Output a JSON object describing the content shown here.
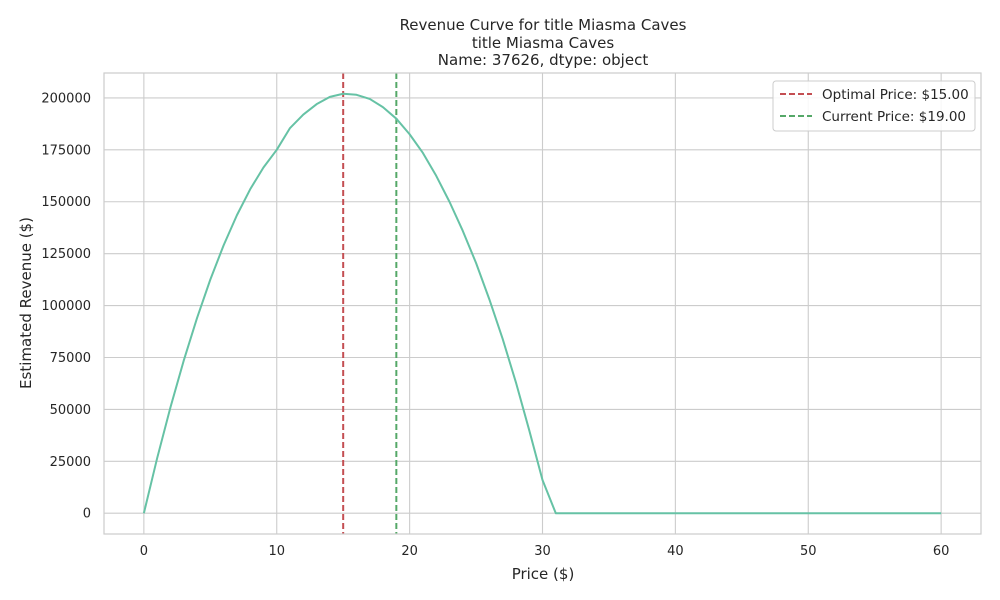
{
  "chart_data": {
    "type": "line",
    "title_lines": [
      "Revenue Curve for title    Miasma Caves",
      "title    Miasma Caves",
      "Name: 37626, dtype: object"
    ],
    "xlabel": "Price ($)",
    "ylabel": "Estimated Revenue ($)",
    "xlim": [
      -3,
      63
    ],
    "ylim": [
      -10000,
      212000
    ],
    "xticks": [
      0,
      10,
      20,
      30,
      40,
      50,
      60
    ],
    "yticks": [
      0,
      25000,
      50000,
      75000,
      100000,
      125000,
      150000,
      175000,
      200000
    ],
    "grid": true,
    "legend_position": "top-right",
    "series": [
      {
        "name": "",
        "color": "#66c2a5",
        "x": [
          0,
          1,
          2,
          3,
          4,
          5,
          6,
          7,
          8,
          9,
          10,
          11,
          12,
          13,
          14,
          15,
          16,
          17,
          18,
          19,
          20,
          21,
          22,
          23,
          24,
          25,
          26,
          27,
          28,
          29,
          30,
          31,
          32,
          33,
          34,
          35,
          36,
          37,
          38,
          39,
          40,
          41,
          42,
          43,
          44,
          45,
          46,
          47,
          48,
          49,
          50,
          51,
          52,
          53,
          54,
          55,
          56,
          57,
          58,
          59,
          60
        ],
        "y": [
          0,
          26500,
          51000,
          73500,
          94000,
          112500,
          129000,
          143500,
          156000,
          166500,
          175000,
          185500,
          192000,
          197000,
          200500,
          202000,
          201500,
          199500,
          195500,
          190000,
          182500,
          173500,
          162500,
          150000,
          136000,
          120500,
          103000,
          84000,
          63000,
          40000,
          16000,
          0,
          0,
          0,
          0,
          0,
          0,
          0,
          0,
          0,
          0,
          0,
          0,
          0,
          0,
          0,
          0,
          0,
          0,
          0,
          0,
          0,
          0,
          0,
          0,
          0,
          0,
          0,
          0,
          0,
          0
        ]
      }
    ],
    "vlines": [
      {
        "name": "Optimal Price: $15.00",
        "x": 15,
        "color": "#c44e52",
        "style": "dashed"
      },
      {
        "name": "Current Price: $19.00",
        "x": 19,
        "color": "#55a868",
        "style": "dashed"
      }
    ]
  }
}
